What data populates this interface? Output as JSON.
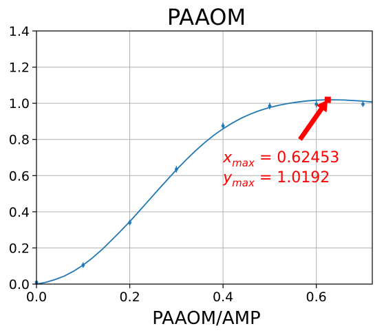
{
  "chart_data": {
    "type": "scatter",
    "title": "PAAOM",
    "xlabel": "PAAOM/AMP",
    "ylabel": "",
    "xlim": [
      0.0,
      0.72
    ],
    "ylim": [
      0.0,
      1.4
    ],
    "xticks": [
      "0.0",
      "0.2",
      "0.4",
      "0.6"
    ],
    "yticks": [
      "0.0",
      "0.2",
      "0.4",
      "0.6",
      "0.8",
      "1.0",
      "1.2",
      "1.4"
    ],
    "grid": true,
    "series": [
      {
        "kind": "points_with_errorbars",
        "color": "#1f77b4",
        "x": [
          0.0,
          0.1,
          0.2,
          0.3,
          0.4,
          0.5,
          0.6,
          0.7
        ],
        "y": [
          0.01,
          0.105,
          0.34,
          0.635,
          0.875,
          0.985,
          0.995,
          0.995
        ],
        "yerr": [
          0.01,
          0.015,
          0.015,
          0.018,
          0.018,
          0.018,
          0.018,
          0.015
        ]
      },
      {
        "kind": "fit_line",
        "color": "#1f77b4",
        "x": [
          0.0,
          0.02,
          0.04,
          0.06,
          0.08,
          0.1,
          0.12,
          0.14,
          0.16,
          0.18,
          0.2,
          0.22,
          0.24,
          0.26,
          0.28,
          0.3,
          0.32,
          0.34,
          0.36,
          0.38,
          0.4,
          0.42,
          0.44,
          0.46,
          0.48,
          0.5,
          0.52,
          0.54,
          0.56,
          0.58,
          0.6,
          0.62,
          0.64,
          0.66,
          0.68,
          0.7,
          0.72
        ],
        "y": [
          0.0,
          0.01,
          0.025,
          0.045,
          0.072,
          0.105,
          0.145,
          0.19,
          0.24,
          0.292,
          0.346,
          0.403,
          0.461,
          0.519,
          0.576,
          0.632,
          0.685,
          0.735,
          0.781,
          0.823,
          0.859,
          0.891,
          0.919,
          0.942,
          0.961,
          0.977,
          0.989,
          0.999,
          1.007,
          1.013,
          1.017,
          1.019,
          1.019,
          1.018,
          1.015,
          1.012,
          1.007
        ]
      }
    ],
    "marker": {
      "x": 0.62453,
      "y": 1.0192,
      "color": "#ff0000"
    },
    "arrow": {
      "from": [
        0.565,
        0.8
      ],
      "to": [
        0.62453,
        1.0192
      ],
      "color": "#ff0000"
    },
    "annotation": {
      "line1": {
        "var": "x",
        "sub": "max",
        "text": " = 0.62453"
      },
      "line2": {
        "var": "y",
        "sub": "max",
        "text": " = 1.0192"
      },
      "color": "#ff0000",
      "anchor": [
        0.4,
        0.7
      ]
    }
  }
}
